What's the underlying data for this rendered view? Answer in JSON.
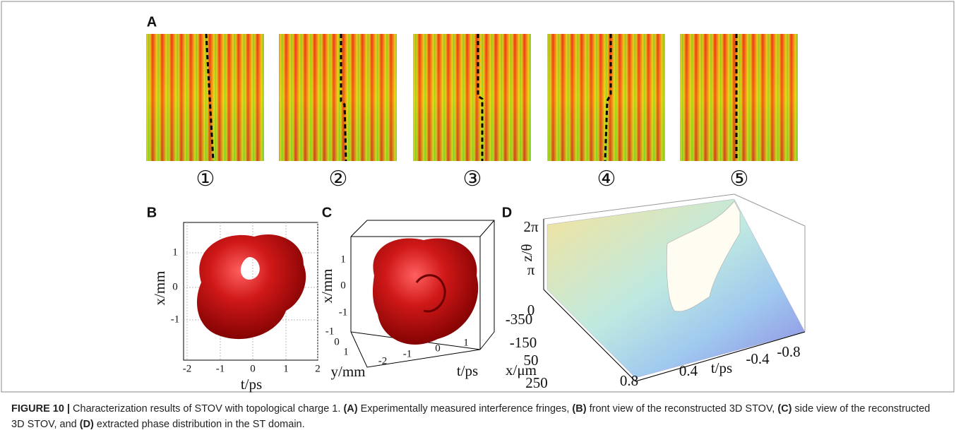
{
  "figure": {
    "panel_a": {
      "label": "A",
      "frames": [
        "①",
        "②",
        "③",
        "④",
        "⑤"
      ]
    },
    "panel_b": {
      "label": "B",
      "x_label": "t/ps",
      "y_label": "x/mm",
      "x_ticks": [
        "-2",
        "-1",
        "0",
        "1",
        "2"
      ],
      "y_ticks": [
        "1",
        "0",
        "-1"
      ]
    },
    "panel_c": {
      "label": "C",
      "x_label": "t/ps",
      "y_label": "x/mm",
      "z_label": "y/mm",
      "x_ticks": [
        "-2",
        "-1",
        "0",
        "1"
      ],
      "y_ticks": [
        "1",
        "0",
        "-1"
      ],
      "z_ticks": [
        "-1",
        "0",
        "1"
      ]
    },
    "panel_d": {
      "label": "D",
      "z_label": "z/θ",
      "z_ticks": [
        "2π",
        "π",
        "0"
      ],
      "x_label": "x/μm",
      "x_ticks": [
        "-350",
        "-150",
        "50",
        "250"
      ],
      "t_label": "t/ps",
      "t_ticks": [
        "0.8",
        "0.4",
        "-0.4",
        "-0.8"
      ]
    }
  },
  "caption": [
    {
      "text": "FIGURE 10 |",
      "bold": true
    },
    {
      "text": " Characterization results of STOV with topological charge 1. ",
      "bold": false
    },
    {
      "text": "(A)",
      "bold": true
    },
    {
      "text": " Experimentally measured interference fringes, ",
      "bold": false
    },
    {
      "text": "(B)",
      "bold": true
    },
    {
      "text": " front view of the reconstructed 3D STOV, ",
      "bold": false
    },
    {
      "text": "(C)",
      "bold": true
    },
    {
      "text": " side view of the reconstructed 3D STOV, and ",
      "bold": false
    },
    {
      "text": "(D)",
      "bold": true
    },
    {
      "text": " extracted phase distribution in the ST domain.",
      "bold": false
    }
  ]
}
